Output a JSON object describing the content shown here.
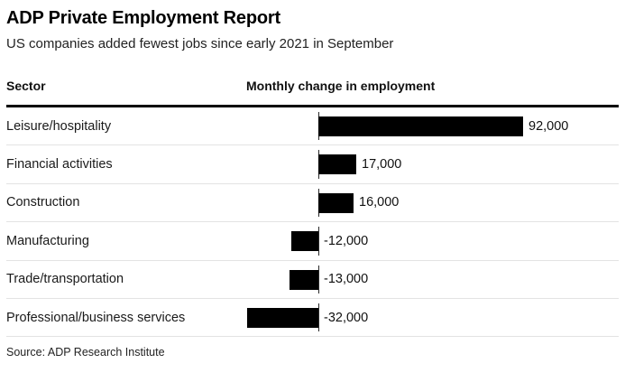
{
  "header": {
    "title": "ADP Private Employment Report",
    "subtitle": "US companies added fewest jobs since early 2021 in September"
  },
  "table_headers": {
    "sector": "Sector",
    "value": "Monthly change in employment"
  },
  "chart_data": {
    "type": "bar",
    "orientation": "horizontal",
    "title": "ADP Private Employment Report",
    "subtitle": "US companies added fewest jobs since early 2021 in September",
    "xlabel": "Monthly change in employment",
    "ylabel": "Sector",
    "categories": [
      "Leisure/hospitality",
      "Financial activities",
      "Construction",
      "Manufacturing",
      "Trade/transportation",
      "Professional/business services"
    ],
    "values": [
      92000,
      17000,
      16000,
      -12000,
      -13000,
      -32000
    ],
    "value_labels": [
      "92,000",
      "17,000",
      "16,000",
      "-12,000",
      "-13,000",
      "-32,000"
    ],
    "bar_color": "#000000",
    "grid": "off",
    "legend": "none"
  },
  "footer": {
    "source": "Source: ADP Research Institute"
  }
}
